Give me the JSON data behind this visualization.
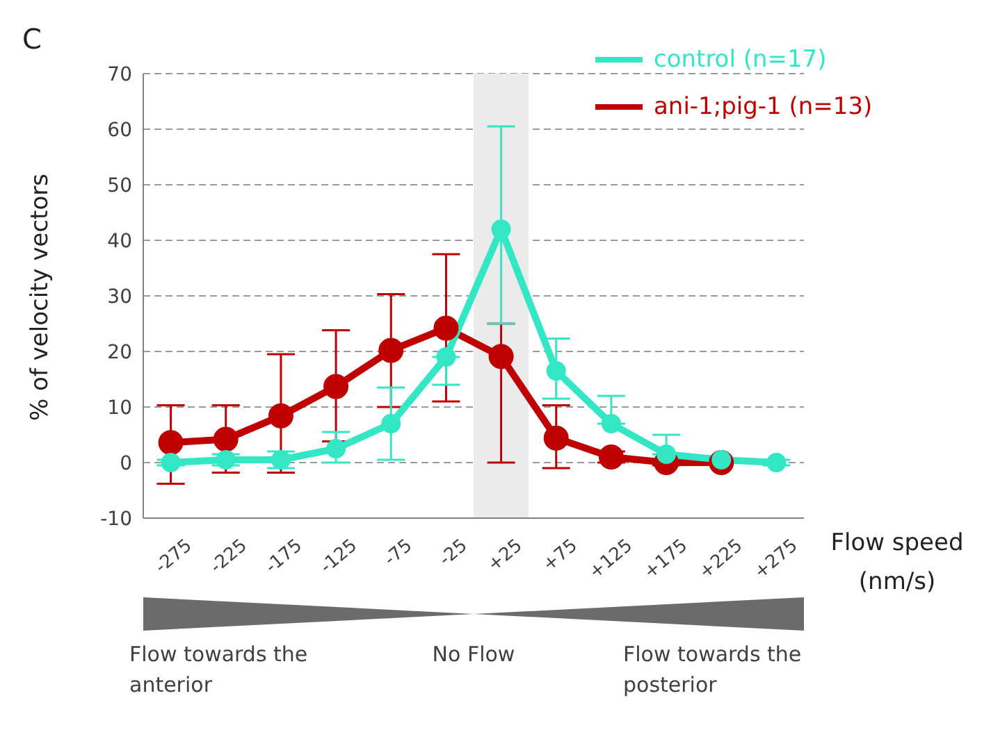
{
  "chart_data": {
    "type": "line",
    "title": "C",
    "xlabel": "Flow speed (nm/s)",
    "ylabel": "% of velocity vectors",
    "categories": [
      "-275",
      "-225",
      "-175",
      "-125",
      "-75",
      "-25",
      "+25",
      "+75",
      "+125",
      "+175",
      "+225",
      "+275"
    ],
    "series": [
      {
        "name": "control (n=17)",
        "color": "#33e6c4",
        "values": [
          0,
          0.5,
          0.5,
          2.5,
          7,
          19,
          42,
          16.5,
          7,
          1.5,
          0.5,
          0
        ],
        "errors": [
          0.5,
          1,
          1.5,
          [
            0,
            5.5
          ],
          [
            0.5,
            13.5
          ],
          [
            14,
            19
          ],
          [
            25,
            60.5
          ],
          [
            11.5,
            22.3
          ],
          [
            7,
            12
          ],
          [
            1.5,
            5
          ],
          null,
          0.5
        ]
      },
      {
        "name": "ani-1;pig-1 (n=13)",
        "color": "#c00000",
        "values": [
          3.6,
          4.2,
          8.4,
          13.7,
          20.2,
          24.2,
          19.1,
          4.4,
          1,
          0,
          0,
          null
        ],
        "errors": [
          [
            -3.8,
            10.3
          ],
          [
            -1.8,
            10.3
          ],
          [
            -1.8,
            19.5
          ],
          [
            3.8,
            23.8
          ],
          [
            10,
            30.3
          ],
          [
            11,
            37.5
          ],
          [
            0,
            25
          ],
          [
            -1,
            10.3
          ],
          1,
          0.5,
          null,
          null
        ]
      }
    ],
    "ylim": [
      -10,
      70
    ],
    "yticks": [
      -10,
      0,
      10,
      20,
      30,
      40,
      50,
      60,
      70
    ],
    "grid": "y",
    "legend": "top right",
    "marker": "circle",
    "bands": [
      {
        "axis": "x",
        "from": "+25",
        "to": "+25",
        "color": "#ebebeb"
      }
    ],
    "annotations": [
      "Flow towards the anterior",
      "No Flow",
      "Flow towards the posterior"
    ]
  }
}
